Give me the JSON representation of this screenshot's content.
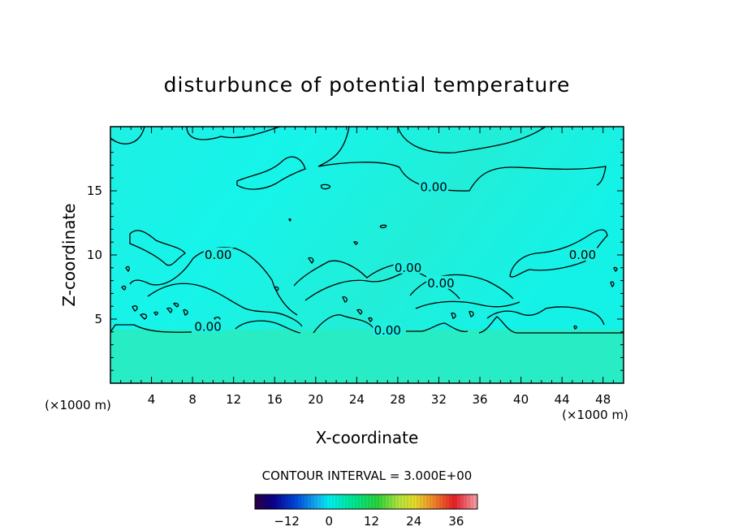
{
  "chart_data": {
    "type": "heatmap",
    "title": "disturbunce of potential temperature",
    "xlabel": "X-coordinate",
    "ylabel": "Z-coordinate",
    "x_unit_left": "(×1000 m)",
    "x_unit_right": "(×1000 m)",
    "xlim": [
      0,
      50
    ],
    "ylim": [
      0,
      20
    ],
    "x_ticks": [
      4,
      8,
      12,
      16,
      20,
      24,
      28,
      32,
      36,
      40,
      44,
      48
    ],
    "y_ticks": [
      5,
      10,
      15
    ],
    "contour_interval_text": "CONTOUR INTERVAL = 3.000E+00",
    "contour_labels": [
      {
        "text": "0.00",
        "x": 31.5,
        "z": 15.3
      },
      {
        "text": "0.00",
        "x": 10.5,
        "z": 10.0
      },
      {
        "text": "0.00",
        "x": 29.0,
        "z": 9.0
      },
      {
        "text": "0.00",
        "x": 32.2,
        "z": 7.8
      },
      {
        "text": "0.00",
        "x": 46.0,
        "z": 10.0
      },
      {
        "text": "0.00",
        "x": 9.5,
        "z": 4.4
      },
      {
        "text": "0.00",
        "x": 27.0,
        "z": 4.1
      }
    ],
    "colorbar": {
      "vmin": -21,
      "vmax": 42,
      "ticks": [
        "−12",
        "0",
        "12",
        "24",
        "36"
      ],
      "tick_values": [
        -12,
        0,
        12,
        24,
        36
      ]
    },
    "field_colors": {
      "upper": "#1af2e6",
      "lower": "#26ecc6"
    }
  }
}
